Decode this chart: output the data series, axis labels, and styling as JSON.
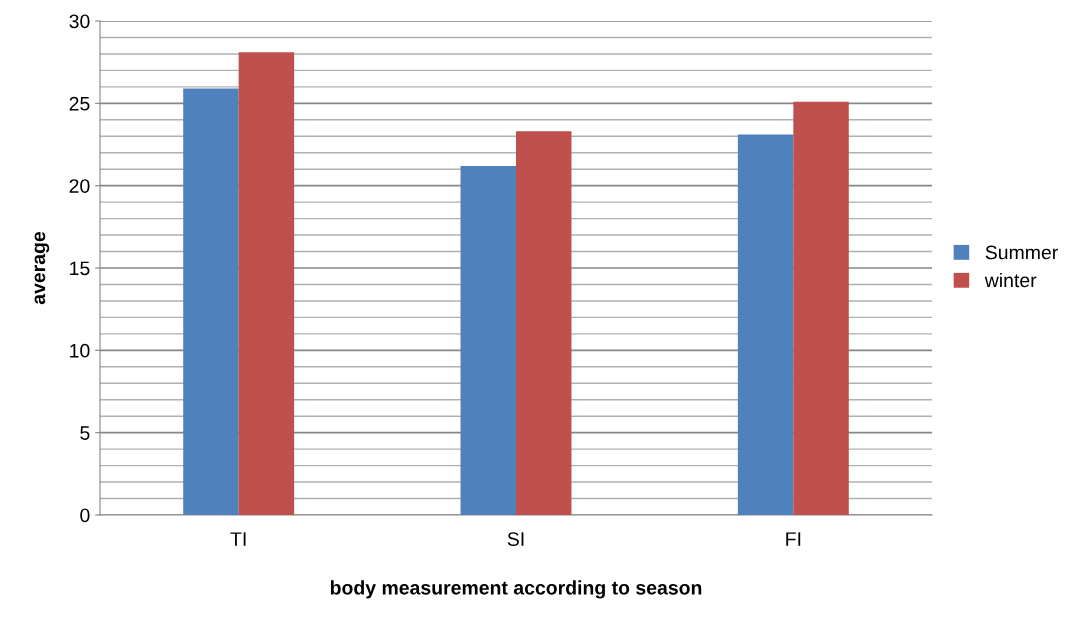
{
  "chart_data": {
    "type": "bar",
    "xlabel": "body measurement according to season",
    "ylabel": "average",
    "categories": [
      "TI",
      "SI",
      "FI"
    ],
    "series": [
      {
        "name": "Summer",
        "color": "#4f81bd",
        "values": [
          25.9,
          21.2,
          23.1
        ]
      },
      {
        "name": "winter",
        "color": "#c0504d",
        "values": [
          28.1,
          23.3,
          25.1
        ]
      }
    ],
    "ylim": [
      0,
      30
    ],
    "yticks": [
      0,
      5,
      10,
      15,
      20,
      25,
      30
    ],
    "grid": "y",
    "legend": "right"
  }
}
